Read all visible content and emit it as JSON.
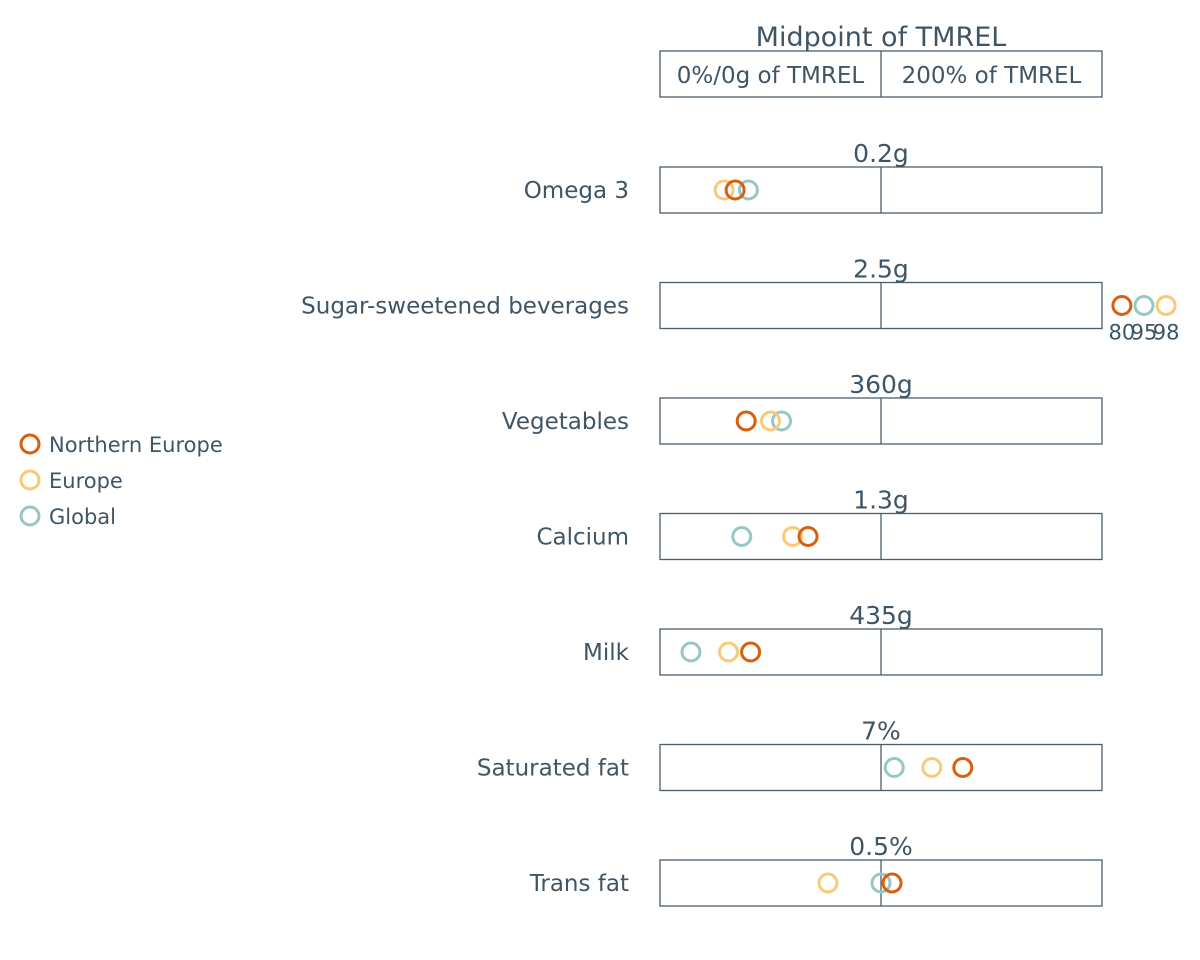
{
  "chart_data": {
    "type": "scatter",
    "header": {
      "title": "Midpoint of TMREL",
      "left_label": "0%/0g of TMREL",
      "right_label": "200% of TMREL"
    },
    "x_unit": "percent of TMREL",
    "xlim": [
      0,
      200
    ],
    "series": [
      {
        "name": "Northern Europe",
        "color": "#d95f0e"
      },
      {
        "name": "Europe",
        "color": "#f9c97a"
      },
      {
        "name": "Global",
        "color": "#96c7c6"
      }
    ],
    "rows": [
      {
        "label": "Omega 3",
        "tmrel": "0.2g",
        "values": {
          "Northern Europe": 34,
          "Europe": 29,
          "Global": 40
        }
      },
      {
        "label": "Sugar-sweetened beverages",
        "tmrel": "2.5g",
        "overflow": true,
        "values": {
          "Northern Europe": 209,
          "Europe": 229,
          "Global": 219
        },
        "overflow_labels": [
          "80",
          "95",
          "98"
        ]
      },
      {
        "label": "Vegetables",
        "tmrel": "360g",
        "values": {
          "Northern Europe": 39,
          "Europe": 50,
          "Global": 55
        }
      },
      {
        "label": "Calcium",
        "tmrel": "1.3g",
        "values": {
          "Northern Europe": 67,
          "Europe": 60,
          "Global": 37
        }
      },
      {
        "label": "Milk",
        "tmrel": "435g",
        "values": {
          "Northern Europe": 41,
          "Europe": 31,
          "Global": 14
        }
      },
      {
        "label": "Saturated fat",
        "tmrel": "7%",
        "values": {
          "Northern Europe": 137,
          "Europe": 123,
          "Global": 106
        }
      },
      {
        "label": "Trans fat",
        "tmrel": "0.5%",
        "values": {
          "Northern Europe": 105,
          "Europe": 76,
          "Global": 100
        }
      }
    ],
    "legend": {
      "position": "left"
    }
  }
}
